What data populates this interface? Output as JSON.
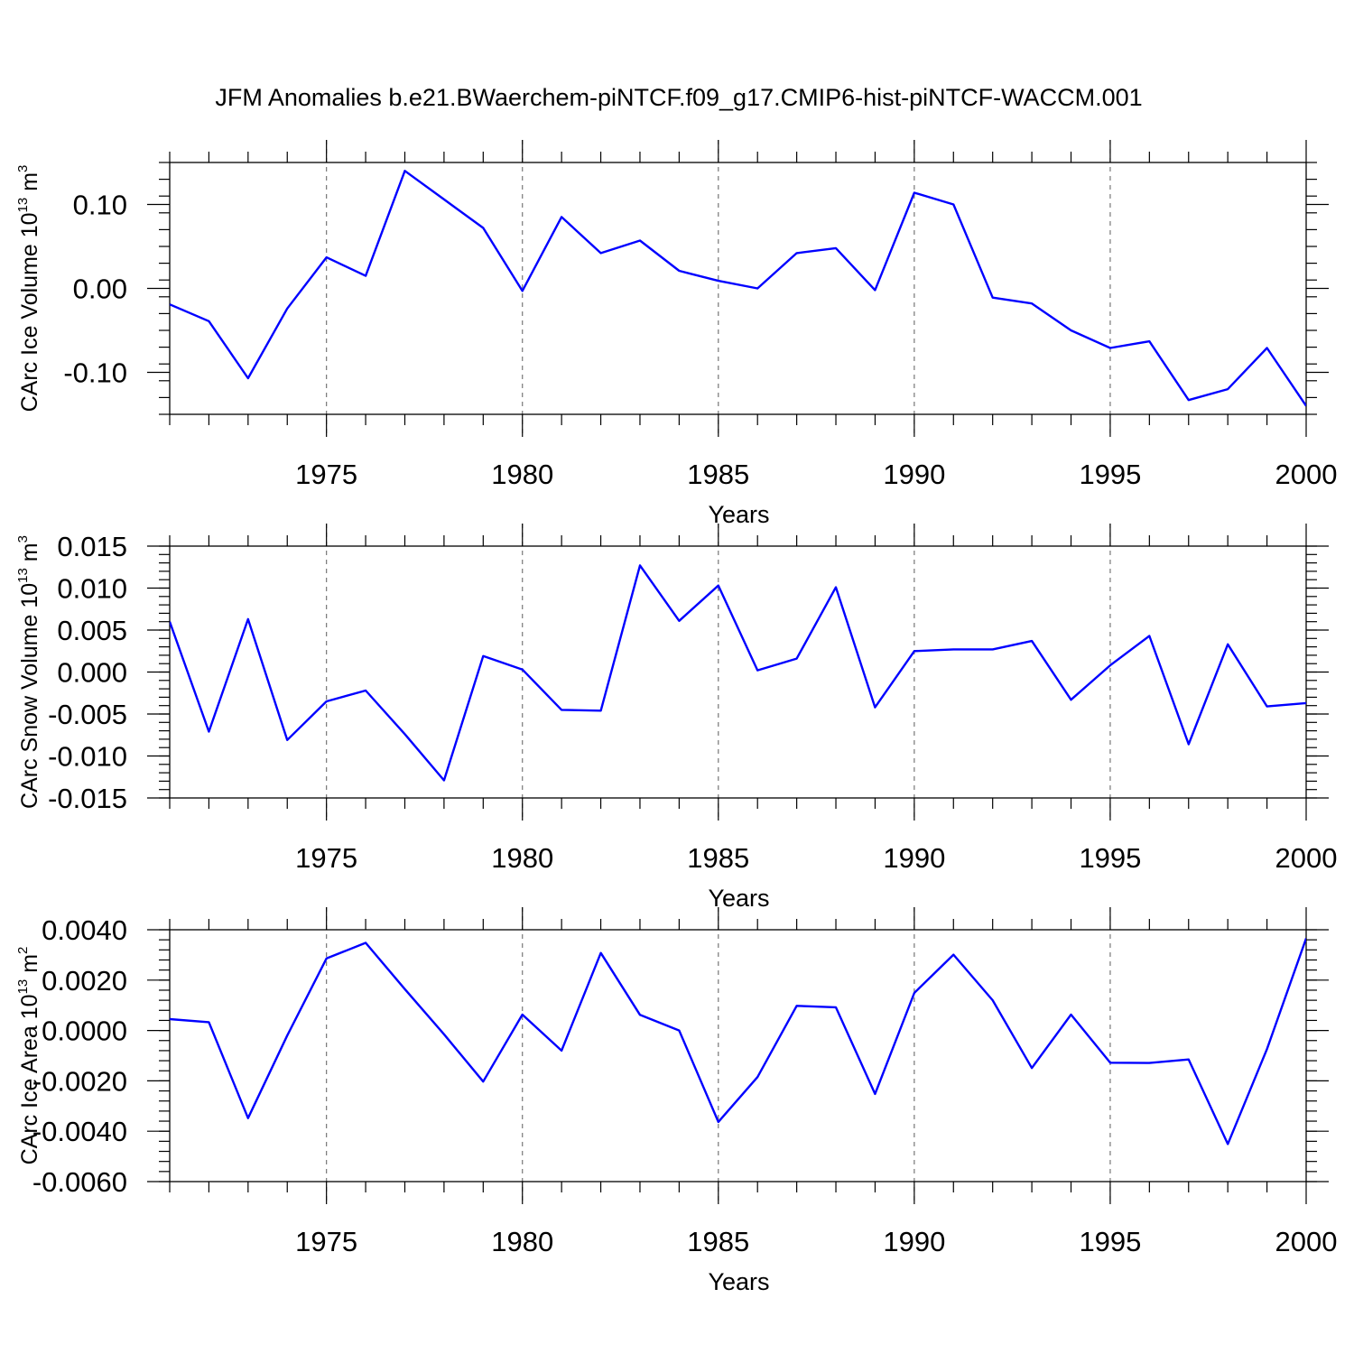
{
  "title": "JFM Anomalies b.e21.BWaerchem-piNTCF.f09_g17.CMIP6-hist-piNTCF-WACCM.001",
  "colors": {
    "line": "#0000ff",
    "frame": "#000000",
    "grid": "#777777"
  },
  "chart_data": [
    {
      "type": "line",
      "ylabel": "CArc Ice Volume 10",
      "ylabel_exp": "13",
      "ylabel_unit": " m",
      "ylabel_unit_exp": "3",
      "xlabel": "Years",
      "xlim": [
        1971,
        2000
      ],
      "ylim": [
        -0.15,
        0.15
      ],
      "yticks": [
        -0.1,
        0.0,
        0.1
      ],
      "ytick_labels": [
        "-0.10",
        "0.00",
        "0.10"
      ],
      "xticks": [
        1975,
        1980,
        1985,
        1990,
        1995,
        2000
      ],
      "xtick_labels": [
        "1975",
        "1980",
        "1985",
        "1990",
        "1995",
        "2000"
      ],
      "grid": "dashed vertical at major x ticks",
      "x": [
        1971,
        1972,
        1973,
        1974,
        1975,
        1976,
        1977,
        1978,
        1979,
        1980,
        1981,
        1982,
        1983,
        1984,
        1985,
        1986,
        1987,
        1988,
        1989,
        1990,
        1991,
        1992,
        1993,
        1994,
        1995,
        1996,
        1997,
        1998,
        1999,
        2000
      ],
      "series": [
        {
          "values": [
            -0.019,
            -0.039,
            -0.107,
            -0.024,
            0.037,
            0.015,
            0.14,
            0.106,
            0.072,
            -0.003,
            0.085,
            0.042,
            0.057,
            0.021,
            0.009,
            0.0,
            0.042,
            0.048,
            -0.002,
            0.114,
            0.1,
            -0.011,
            -0.018,
            -0.05,
            -0.071,
            -0.063,
            -0.133,
            -0.12,
            -0.071,
            -0.14
          ]
        }
      ]
    },
    {
      "type": "line",
      "ylabel": "CArc Snow Volume 10",
      "ylabel_exp": "13",
      "ylabel_unit": " m",
      "ylabel_unit_exp": "3",
      "xlabel": "Years",
      "xlim": [
        1971,
        2000
      ],
      "ylim": [
        -0.015,
        0.015
      ],
      "yticks": [
        -0.015,
        -0.01,
        -0.005,
        0.0,
        0.005,
        0.01,
        0.015
      ],
      "ytick_labels": [
        "-0.015",
        "-0.010",
        "-0.005",
        "0.000",
        "0.005",
        "0.010",
        "0.015"
      ],
      "xticks": [
        1975,
        1980,
        1985,
        1990,
        1995,
        2000
      ],
      "xtick_labels": [
        "1975",
        "1980",
        "1985",
        "1990",
        "1995",
        "2000"
      ],
      "grid": "dashed vertical at major x ticks",
      "x": [
        1971,
        1972,
        1973,
        1974,
        1975,
        1976,
        1977,
        1978,
        1979,
        1980,
        1981,
        1982,
        1983,
        1984,
        1985,
        1986,
        1987,
        1988,
        1989,
        1990,
        1991,
        1992,
        1993,
        1994,
        1995,
        1996,
        1997,
        1998,
        1999,
        2000
      ],
      "series": [
        {
          "values": [
            0.006,
            -0.0071,
            0.0063,
            -0.0081,
            -0.0035,
            -0.0022,
            -0.0074,
            -0.0129,
            0.0019,
            0.0003,
            -0.0045,
            -0.0046,
            0.0127,
            0.0061,
            0.0103,
            0.0002,
            0.0016,
            0.0101,
            -0.0042,
            0.0025,
            0.0027,
            0.0027,
            0.0037,
            -0.0033,
            0.0008,
            0.0043,
            -0.0086,
            0.0033,
            -0.0041,
            -0.0037
          ]
        }
      ]
    },
    {
      "type": "line",
      "ylabel": "CArc Ice Area 10",
      "ylabel_exp": "13",
      "ylabel_unit": " m",
      "ylabel_unit_exp": "2",
      "xlabel": "Years",
      "xlim": [
        1971,
        2000
      ],
      "ylim": [
        -0.006,
        0.004
      ],
      "yticks": [
        -0.006,
        -0.004,
        -0.002,
        0.0,
        0.002,
        0.004
      ],
      "ytick_labels": [
        "-0.0060",
        "-0.0040",
        "-0.0020",
        "0.0000",
        "0.0020",
        "0.0040"
      ],
      "xticks": [
        1975,
        1980,
        1985,
        1990,
        1995,
        2000
      ],
      "xtick_labels": [
        "1975",
        "1980",
        "1985",
        "1990",
        "1995",
        "2000"
      ],
      "grid": "dashed vertical at major x ticks",
      "x": [
        1971,
        1972,
        1973,
        1974,
        1975,
        1976,
        1977,
        1978,
        1979,
        1980,
        1981,
        1982,
        1983,
        1984,
        1985,
        1986,
        1987,
        1988,
        1989,
        1990,
        1991,
        1992,
        1993,
        1994,
        1995,
        1996,
        1997,
        1998,
        1999,
        2000
      ],
      "series": [
        {
          "values": [
            0.00045,
            0.00033,
            -0.00348,
            -0.0002,
            0.00286,
            0.00348,
            0.00164,
            -0.00015,
            -0.00203,
            0.00063,
            -0.0008,
            0.00308,
            0.00062,
            0.0,
            -0.00363,
            -0.00185,
            0.00098,
            0.00092,
            -0.00252,
            0.00149,
            0.00301,
            0.0012,
            -0.00149,
            0.00063,
            -0.00128,
            -0.00129,
            -0.00115,
            -0.00451,
            -0.00074,
            0.00366
          ]
        }
      ]
    }
  ]
}
